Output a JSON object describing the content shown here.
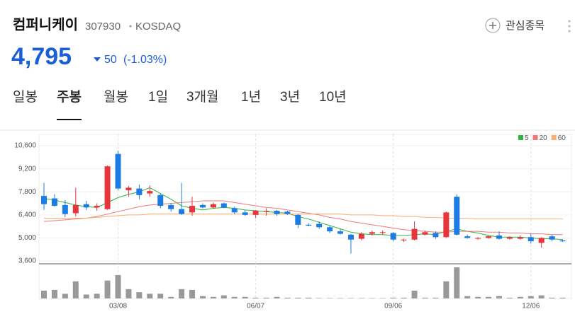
{
  "header": {
    "name": "컴퍼니케이",
    "code": "307930",
    "market": "KOSDAQ",
    "action": "관심종목"
  },
  "quote": {
    "price": "4,795",
    "change": "50",
    "change_pct": "(-1.03%)"
  },
  "tabs": [
    "일봉",
    "주봉",
    "월봉",
    "1일",
    "3개월",
    "1년",
    "3년",
    "10년"
  ],
  "selected_tab": 1,
  "chart_data": {
    "type": "candlestick",
    "categories": [
      null,
      null,
      null,
      null,
      null,
      null,
      null,
      "03/08",
      null,
      null,
      null,
      null,
      null,
      null,
      null,
      null,
      null,
      null,
      null,
      null,
      "06/07",
      null,
      null,
      null,
      null,
      null,
      null,
      null,
      null,
      null,
      null,
      null,
      null,
      "09/06",
      null,
      null,
      null,
      null,
      null,
      null,
      null,
      null,
      null,
      null,
      null,
      null,
      "12/06",
      null,
      null,
      null
    ],
    "open": [
      7550,
      7400,
      7000,
      6500,
      7050,
      6850,
      6750,
      10100,
      7900,
      8000,
      7700,
      7600,
      7000,
      6750,
      6550,
      7000,
      6850,
      7100,
      6800,
      6550,
      6400,
      6600,
      6650,
      6600,
      6400,
      5800,
      5850,
      5650,
      5400,
      5200,
      4950,
      5250,
      5300,
      5300,
      4850,
      4900,
      5200,
      5300,
      5050,
      7500,
      5100,
      4950,
      5000,
      5150,
      4950,
      4950,
      5050,
      4700,
      5100,
      4850
    ],
    "high": [
      8350,
      7650,
      7300,
      8050,
      7250,
      7100,
      9400,
      10300,
      8150,
      8250,
      8200,
      7700,
      7100,
      8350,
      7500,
      7100,
      7150,
      7150,
      6900,
      6700,
      6700,
      6800,
      6700,
      6650,
      6450,
      5900,
      6000,
      5750,
      5550,
      5250,
      5350,
      5450,
      5450,
      5350,
      4950,
      6000,
      5450,
      5400,
      6600,
      7650,
      5200,
      5050,
      5150,
      5400,
      5100,
      5150,
      5250,
      5050,
      5200,
      4900
    ],
    "low": [
      6700,
      6900,
      6250,
      6300,
      6700,
      6650,
      6700,
      7900,
      7500,
      7350,
      7500,
      6800,
      6600,
      6400,
      6350,
      6800,
      6800,
      6800,
      6450,
      6350,
      6200,
      6350,
      6350,
      6400,
      5600,
      5700,
      5550,
      5300,
      5200,
      4050,
      4850,
      5150,
      5200,
      4800,
      4750,
      4850,
      5150,
      4950,
      5000,
      5150,
      4950,
      4900,
      4950,
      4900,
      4900,
      4900,
      4650,
      4400,
      4800,
      4750
    ],
    "close": [
      7050,
      6950,
      6450,
      7000,
      6850,
      6950,
      9350,
      8000,
      8050,
      7600,
      7850,
      6950,
      6750,
      6450,
      6950,
      6850,
      7050,
      6850,
      6550,
      6400,
      6650,
      6650,
      6450,
      6450,
      5800,
      5750,
      5650,
      5400,
      5250,
      4900,
      5250,
      5350,
      5350,
      4900,
      4900,
      5550,
      5350,
      5050,
      6550,
      5200,
      5000,
      5000,
      5100,
      4950,
      5050,
      5050,
      4800,
      5000,
      4900,
      4795
    ],
    "volume": [
      10,
      11,
      6,
      22,
      5,
      6,
      23,
      30,
      12,
      8,
      6,
      6,
      2,
      12,
      11,
      3,
      2,
      4,
      2,
      2,
      1,
      1,
      2,
      1,
      1,
      1,
      0.5,
      0.5,
      0.5,
      0.5,
      0.5,
      0.5,
      0.5,
      1,
      1,
      10,
      1,
      1,
      22,
      40,
      3,
      2,
      2,
      3,
      1,
      2,
      3,
      4,
      1,
      1
    ],
    "up_color": "#e8353c",
    "down_color": "#1c7ce3",
    "volume_color": "#999999",
    "ylim": [
      3430,
      11290
    ],
    "yticks": [
      {
        "value": 10600,
        "label": "10,600"
      },
      {
        "value": 9200,
        "label": "9,200"
      },
      {
        "value": 7800,
        "label": "7,800"
      },
      {
        "value": 6400,
        "label": "6,400"
      },
      {
        "value": 5000,
        "label": "5,000"
      },
      {
        "value": 3600,
        "label": "3,600"
      }
    ],
    "grid": true,
    "moving_averages": [
      {
        "name": "5",
        "color": "#2fb53a",
        "values": [
          7400,
          7300,
          7150,
          7000,
          6900,
          6850,
          7150,
          7450,
          7650,
          7800,
          8050,
          7700,
          7350,
          6950,
          6800,
          6700,
          6800,
          6850,
          6800,
          6700,
          6650,
          6600,
          6550,
          6500,
          6300,
          6150,
          5950,
          5750,
          5550,
          5350,
          5250,
          5200,
          5200,
          5150,
          5150,
          5200,
          5250,
          5200,
          5400,
          5550,
          5400,
          5300,
          5150,
          5050,
          5050,
          5050,
          5000,
          4950,
          4950,
          4900
        ]
      },
      {
        "name": "20",
        "color": "#f0787a",
        "values": [
          6000,
          6050,
          6100,
          6150,
          6200,
          6300,
          6450,
          6600,
          6750,
          6900,
          7000,
          7050,
          7100,
          7150,
          7200,
          7250,
          7250,
          7250,
          7150,
          7050,
          6950,
          6850,
          6800,
          6700,
          6600,
          6500,
          6400,
          6250,
          6150,
          6000,
          5900,
          5800,
          5700,
          5600,
          5500,
          5450,
          5400,
          5350,
          5350,
          5400,
          5400,
          5400,
          5350,
          5350,
          5300,
          5300,
          5250,
          5250,
          5200,
          5200
        ]
      },
      {
        "name": "60",
        "color": "#f5b173",
        "values": [
          6200,
          6200,
          6200,
          6200,
          6200,
          6250,
          6300,
          6350,
          6400,
          6400,
          6450,
          6450,
          6450,
          6450,
          6450,
          6450,
          6450,
          6450,
          6450,
          6450,
          6450,
          6450,
          6450,
          6450,
          6450,
          6450,
          6450,
          6450,
          6450,
          6400,
          6400,
          6400,
          6350,
          6350,
          6300,
          6300,
          6250,
          6250,
          6200,
          6200,
          6200,
          6150,
          6150,
          6150,
          6150,
          6150,
          6150,
          6150,
          6150,
          6150
        ]
      }
    ]
  }
}
